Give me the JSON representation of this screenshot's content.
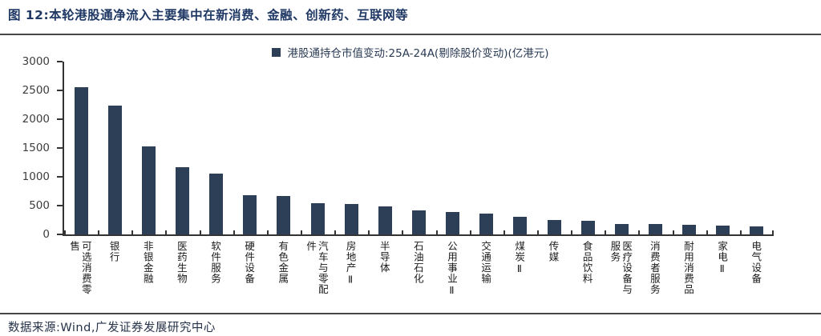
{
  "title": "图 12:本轮港股通净流入主要集中在新消费、金融、创新药、互联网等",
  "footer": "数据来源:Wind,广发证券发展研究中心",
  "colors": {
    "bar": "#2d3f57",
    "title": "#1f3864",
    "axis": "#333333",
    "divider": "#474747"
  },
  "chart_data": {
    "type": "bar",
    "title": "图 12:本轮港股通净流入主要集中在新消费、金融、创新药、互联网等",
    "legend": "港股通持仓市值变动:25A-24A(剔除股价变动)(亿港元)",
    "legend_position": "top-center",
    "unit": "亿港元",
    "grid": false,
    "categories": [
      "可选消费零售",
      "银行",
      "非银金融",
      "医药生物",
      "软件服务",
      "硬件设备",
      "有色金属",
      "汽车与零配件",
      "房地产Ⅱ",
      "半导体",
      "石油石化",
      "公用事业Ⅱ",
      "交通运输",
      "煤炭Ⅱ",
      "传媒",
      "食品饮料",
      "医疗设备与服务",
      "消费者服务",
      "耐用消费品",
      "家电Ⅱ",
      "电气设备"
    ],
    "values": [
      2550,
      2240,
      1530,
      1160,
      1050,
      675,
      660,
      540,
      530,
      480,
      420,
      395,
      365,
      305,
      255,
      240,
      185,
      175,
      165,
      150,
      140
    ],
    "xlabel": "",
    "ylabel": "",
    "ylim": [
      0,
      3000
    ],
    "yticks": [
      0,
      500,
      1000,
      1500,
      2000,
      2500,
      3000
    ]
  }
}
